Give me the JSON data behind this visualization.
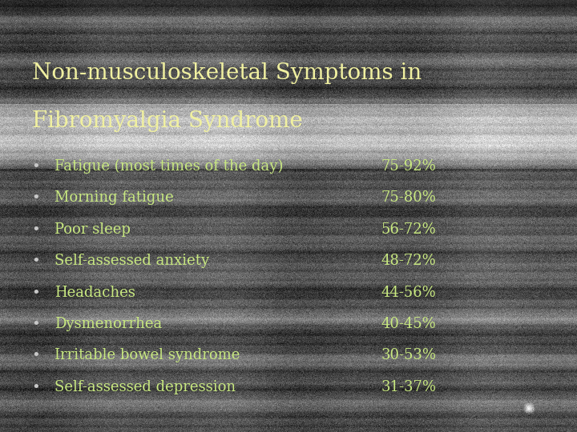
{
  "title_line1": "Non-musculoskeletal Symptoms in",
  "title_line2": "Fibromyalgia Syndrome",
  "title_color": "#f0f0a0",
  "symptoms": [
    "Fatigue (most times of the day)",
    "Morning fatigue",
    "Poor sleep",
    "Self-assessed anxiety",
    "Headaches",
    "Dysmenorrhea",
    "Irritable bowel syndrome",
    "Self-assessed depression"
  ],
  "percentages": [
    "75-92%",
    "75-80%",
    "56-72%",
    "48-72%",
    "44-56%",
    "40-45%",
    "30-53%",
    "31-37%"
  ],
  "text_color": "#c8e880",
  "bullet_color": "#c8c8c8",
  "figsize": [
    7.2,
    5.4
  ],
  "dpi": 100
}
